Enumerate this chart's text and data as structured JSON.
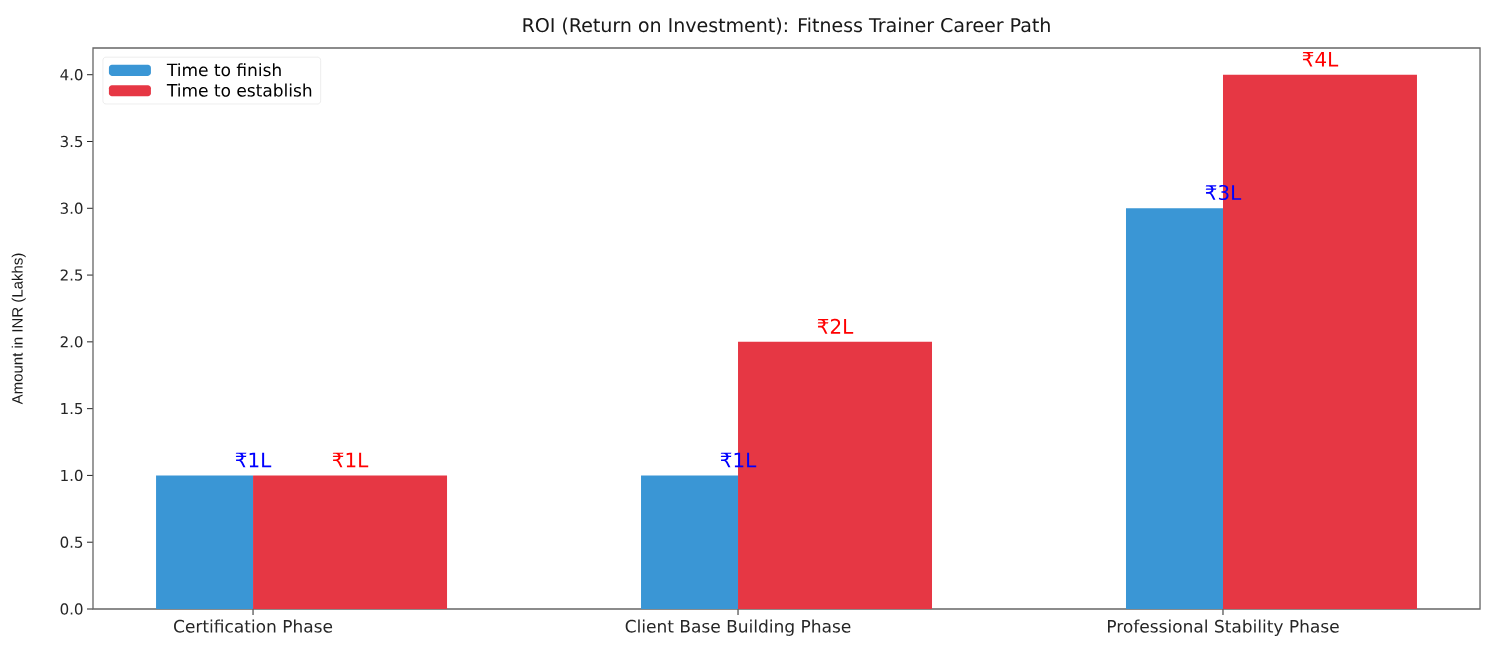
{
  "chart_data": {
    "type": "bar",
    "title": "ROI (Return on Investment): Fitness Trainer Career Path",
    "ylabel": "Amount in INR (Lakhs)",
    "categories": [
      "Certification Phase",
      "Client Base Building Phase",
      "Professional Stability Phase"
    ],
    "series": [
      {
        "name": "Time to finish",
        "color": "#3a96d5",
        "values": [
          1,
          1,
          3
        ],
        "value_labels": [
          "₹1L",
          "₹1L",
          "₹3L"
        ]
      },
      {
        "name": "Time to establish",
        "color": "#e63744",
        "values": [
          1,
          2,
          4
        ],
        "value_labels": [
          "₹1L",
          "₹2L",
          "₹4L"
        ]
      }
    ],
    "ylim": [
      0,
      4.2
    ],
    "yticks": [
      {
        "value": 0,
        "label": "0.0"
      },
      0.5,
      {
        "value": 1,
        "label": "1.0"
      },
      1.5,
      {
        "value": 2,
        "label": "2.0"
      },
      2.5,
      {
        "value": 3,
        "label": "3.0"
      },
      3.5,
      {
        "value": 4,
        "label": "4.0"
      }
    ],
    "legend": "top left"
  }
}
